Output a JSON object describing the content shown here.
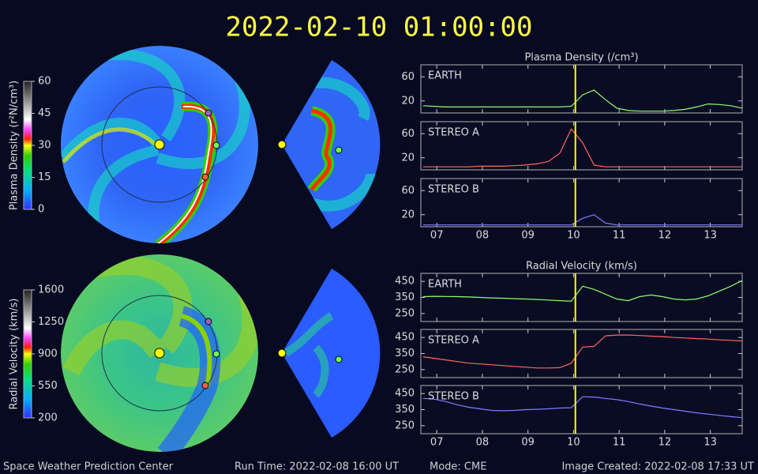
{
  "header": {
    "title": "2022-02-10 01:00:00"
  },
  "colorbars": [
    {
      "label": "Plasma Density (r²N/cm³)",
      "lim": [
        0,
        60
      ],
      "ticks": [
        0,
        15,
        30,
        45,
        60
      ]
    },
    {
      "label": "Radial Velocity (km/s)",
      "lim": [
        200,
        1600
      ],
      "ticks": [
        200,
        550,
        900,
        1250,
        1600
      ]
    }
  ],
  "footer": {
    "left": "Space Weather Prediction Center",
    "run_time": "Run Time: 2022-02-08 16:00 UT",
    "mode": "Mode: CME",
    "created": "Image Created: 2022-02-08 17:33 UT"
  },
  "chart_data": [
    {
      "type": "line",
      "title": "Plasma Density (/cm³)",
      "x": [
        6.7,
        6.95,
        7.2,
        7.45,
        7.7,
        7.95,
        8.2,
        8.45,
        8.7,
        8.95,
        9.2,
        9.45,
        9.7,
        9.95,
        10.2,
        10.45,
        10.7,
        10.95,
        11.2,
        11.45,
        11.7,
        11.95,
        12.2,
        12.45,
        12.7,
        12.95,
        13.2,
        13.45,
        13.7
      ],
      "xlim": [
        6.65,
        13.7
      ],
      "xticks": [
        7,
        8,
        9,
        10,
        11,
        12,
        13
      ],
      "ylim": [
        0,
        80
      ],
      "yticks": [
        20,
        60
      ],
      "vline_x": 10.04,
      "vline_color": "#ffff00",
      "series": [
        {
          "name": "EARTH",
          "color": "#8cff6e",
          "values": [
            12,
            11,
            10,
            10,
            10,
            10,
            10,
            10,
            10,
            10,
            10,
            10,
            10,
            11,
            30,
            38,
            22,
            8,
            4,
            3,
            3,
            3,
            4,
            6,
            10,
            15,
            14,
            12,
            8
          ]
        }
      ]
    },
    {
      "type": "line",
      "x": [
        6.7,
        6.95,
        7.2,
        7.45,
        7.7,
        7.95,
        8.2,
        8.45,
        8.7,
        8.95,
        9.2,
        9.45,
        9.7,
        9.95,
        10.2,
        10.45,
        10.7,
        10.95,
        11.2,
        11.45,
        11.7,
        11.95,
        12.2,
        12.45,
        12.7,
        12.95,
        13.2,
        13.45,
        13.7
      ],
      "xlim": [
        6.65,
        13.7
      ],
      "xticks": [
        7,
        8,
        9,
        10,
        11,
        12,
        13
      ],
      "ylim": [
        0,
        80
      ],
      "yticks": [
        20,
        60
      ],
      "vline_x": 10.04,
      "vline_color": "#ffff00",
      "series": [
        {
          "name": "STEREO A",
          "color": "#ff6a5a",
          "values": [
            5,
            5,
            5,
            5,
            5,
            6,
            6,
            6,
            7,
            8,
            10,
            14,
            28,
            68,
            45,
            8,
            5,
            5,
            5,
            5,
            5,
            5,
            5,
            5,
            5,
            5,
            5,
            5,
            5
          ]
        }
      ]
    },
    {
      "type": "line",
      "x": [
        6.7,
        6.95,
        7.2,
        7.45,
        7.7,
        7.95,
        8.2,
        8.45,
        8.7,
        8.95,
        9.2,
        9.45,
        9.7,
        9.95,
        10.2,
        10.45,
        10.7,
        10.95,
        11.2,
        11.45,
        11.7,
        11.95,
        12.2,
        12.45,
        12.7,
        12.95,
        13.2,
        13.45,
        13.7
      ],
      "xlim": [
        6.65,
        13.7
      ],
      "xticks": [
        {
          "value": 7,
          "label": "07"
        },
        {
          "value": 8,
          "label": "08"
        },
        {
          "value": 9,
          "label": "09"
        },
        10,
        11,
        12,
        13
      ],
      "ylim": [
        0,
        80
      ],
      "yticks": [
        20,
        60
      ],
      "vline_x": 10.04,
      "vline_color": "#ffff00",
      "series": [
        {
          "name": "STEREO B",
          "color": "#7c7cff",
          "values": [
            3,
            3,
            3,
            3,
            3,
            3,
            3,
            3,
            3,
            3,
            3,
            3,
            3,
            3,
            14,
            20,
            6,
            3,
            3,
            3,
            3,
            3,
            3,
            3,
            3,
            3,
            3,
            3,
            3
          ]
        }
      ]
    },
    {
      "type": "line",
      "title": "Radial Velocity (km/s)",
      "x": [
        6.7,
        6.95,
        7.2,
        7.45,
        7.7,
        7.95,
        8.2,
        8.45,
        8.7,
        8.95,
        9.2,
        9.45,
        9.7,
        9.95,
        10.2,
        10.45,
        10.7,
        10.95,
        11.2,
        11.45,
        11.7,
        11.95,
        12.2,
        12.45,
        12.7,
        12.95,
        13.2,
        13.45,
        13.7
      ],
      "xlim": [
        6.65,
        13.7
      ],
      "xticks": [
        7,
        8,
        9,
        10,
        11,
        12,
        13
      ],
      "ylim": [
        200,
        500
      ],
      "yticks": [
        250,
        350,
        450
      ],
      "vline_x": 10.04,
      "vline_color": "#ffff00",
      "series": [
        {
          "name": "EARTH",
          "color": "#8cff6e",
          "values": [
            355,
            357,
            356,
            355,
            353,
            350,
            347,
            345,
            342,
            340,
            337,
            334,
            330,
            327,
            420,
            400,
            370,
            340,
            330,
            355,
            365,
            355,
            340,
            335,
            340,
            360,
            390,
            420,
            455
          ]
        }
      ]
    },
    {
      "type": "line",
      "x": [
        6.7,
        6.95,
        7.2,
        7.45,
        7.7,
        7.95,
        8.2,
        8.45,
        8.7,
        8.95,
        9.2,
        9.45,
        9.7,
        9.95,
        10.2,
        10.45,
        10.7,
        10.95,
        11.2,
        11.45,
        11.7,
        11.95,
        12.2,
        12.45,
        12.7,
        12.95,
        13.2,
        13.45,
        13.7
      ],
      "xlim": [
        6.65,
        13.7
      ],
      "xticks": [
        7,
        8,
        9,
        10,
        11,
        12,
        13
      ],
      "ylim": [
        200,
        500
      ],
      "yticks": [
        250,
        350,
        450
      ],
      "vline_x": 10.04,
      "vline_color": "#ffff00",
      "series": [
        {
          "name": "STEREO A",
          "color": "#ff6a5a",
          "values": [
            330,
            320,
            310,
            300,
            290,
            285,
            280,
            275,
            270,
            265,
            260,
            260,
            262,
            290,
            390,
            395,
            460,
            465,
            465,
            462,
            458,
            455,
            450,
            447,
            443,
            440,
            435,
            432,
            428
          ]
        }
      ]
    },
    {
      "type": "line",
      "x": [
        6.7,
        6.95,
        7.2,
        7.45,
        7.7,
        7.95,
        8.2,
        8.45,
        8.7,
        8.95,
        9.2,
        9.45,
        9.7,
        9.95,
        10.2,
        10.45,
        10.7,
        10.95,
        11.2,
        11.45,
        11.7,
        11.95,
        12.2,
        12.45,
        12.7,
        12.95,
        13.2,
        13.45,
        13.7
      ],
      "xlim": [
        6.65,
        13.7
      ],
      "xticks": [
        {
          "value": 7,
          "label": "07"
        },
        {
          "value": 8,
          "label": "08"
        },
        {
          "value": 9,
          "label": "09"
        },
        10,
        11,
        12,
        13
      ],
      "ylim": [
        200,
        500
      ],
      "yticks": [
        250,
        350,
        450
      ],
      "vline_x": 10.04,
      "vline_color": "#ffff00",
      "series": [
        {
          "name": "STEREO B",
          "color": "#7c7cff",
          "values": [
            420,
            415,
            400,
            380,
            365,
            355,
            345,
            343,
            345,
            350,
            352,
            355,
            360,
            362,
            430,
            428,
            420,
            412,
            400,
            385,
            372,
            360,
            350,
            340,
            330,
            322,
            314,
            306,
            300
          ]
        }
      ]
    }
  ]
}
